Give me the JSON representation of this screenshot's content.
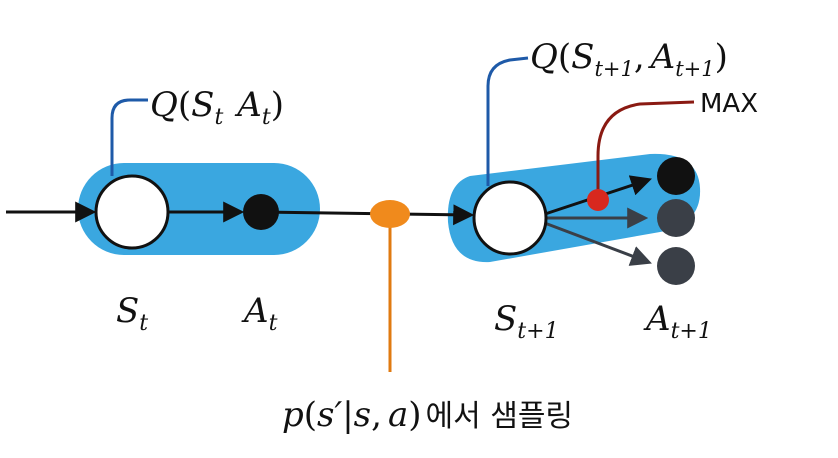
{
  "labels": {
    "q_left": {
      "q": "Q",
      "s": "S",
      "s_sub": "t",
      "a": "A",
      "a_sub": "t"
    },
    "q_right": {
      "q": "Q",
      "s": "S",
      "s_sub": "t+1",
      "comma": ",",
      "a": "A",
      "a_sub": "t+1"
    },
    "max": "MAX",
    "state_t": {
      "main": "S",
      "sub": "t"
    },
    "action_t": {
      "main": "A",
      "sub": "t"
    },
    "state_t1": {
      "main": "S",
      "sub": "t+1"
    },
    "action_t1": {
      "main": "A",
      "sub": "t+1"
    },
    "sampling": {
      "p": "p",
      "paren_open": "(",
      "s_prime": "s′",
      "bar": "|",
      "s": "s",
      "comma": ",",
      "a": "a",
      "paren_close": ")",
      "korean": "에서 샘플링"
    }
  },
  "colors": {
    "highlight": "#3aa7e0",
    "sample_node": "#f08a1c",
    "max_marker": "#d8281e",
    "max_leader": "#8a1a12",
    "q_leader": "#1e5aa8",
    "sample_leader": "#e07a10",
    "action_node": "#111111",
    "dim_action_node": "#3a3f47",
    "edge": "#111111"
  }
}
